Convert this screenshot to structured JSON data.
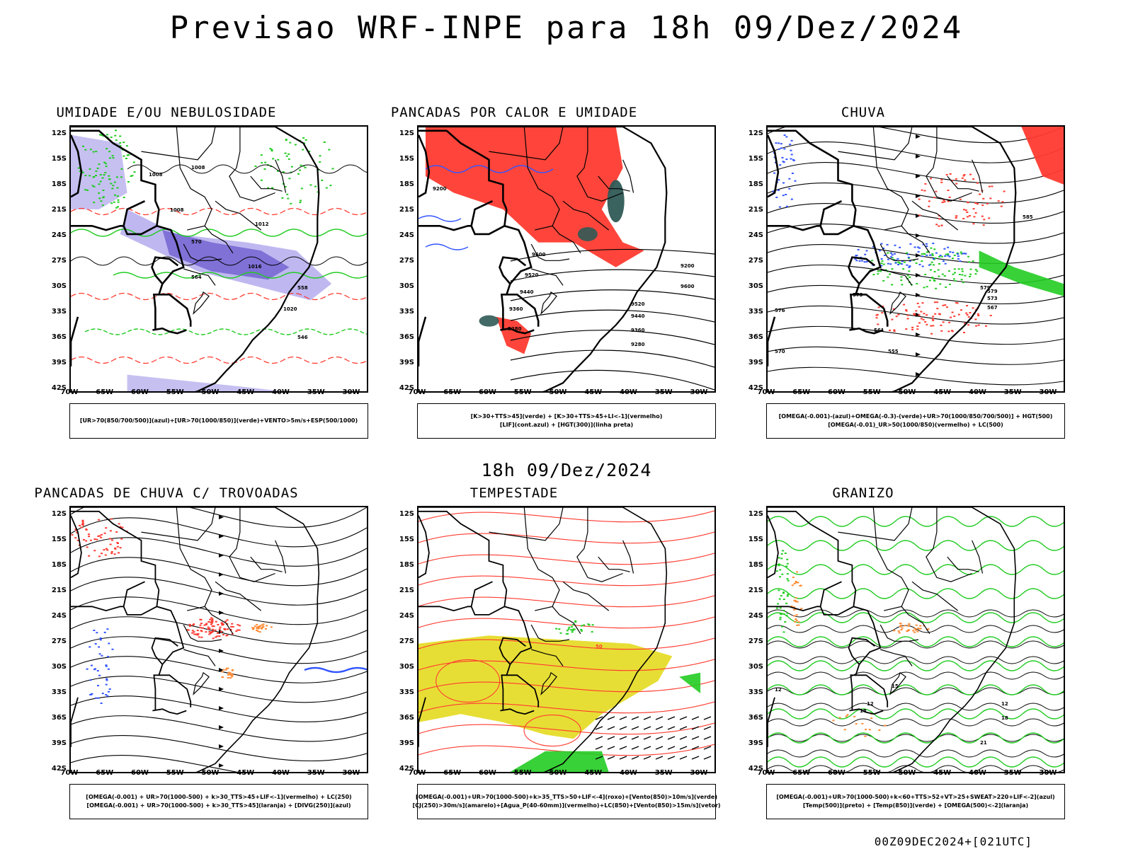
{
  "main_title": "Previsao WRF-INPE  para 18h 09/Dez/2024",
  "mid_date": "18h 09/Dez/2024",
  "footer_stamp": "00Z09DEC2024+[021UTC]",
  "lat_labels": [
    "12S",
    "15S",
    "18S",
    "21S",
    "24S",
    "27S",
    "30S",
    "33S",
    "36S",
    "39S",
    "42S"
  ],
  "lon_labels": [
    "70W",
    "65W",
    "60W",
    "55W",
    "50W",
    "45W",
    "40W",
    "35W",
    "30W"
  ],
  "colors": {
    "red": "#ff3b30",
    "green": "#22cc22",
    "blue": "#3355ff",
    "purple": "#6a5acd",
    "lavender": "#b8b0ee",
    "yellow": "#e6dc2a",
    "darkteal": "#2f5a55",
    "orange": "#ff8a33"
  },
  "panels": [
    {
      "title": "UMIDADE E/OU NEBULOSIDADE",
      "legend": [
        "[UR>70(850/700/500)](azul)+[UR>70(1000/850)](verde)+VENTO>5m/s+ESP(500/1000)"
      ],
      "contour_labels": [
        "1008",
        "1008",
        "1008",
        "1012",
        "1016",
        "1020",
        "570",
        "564",
        "558",
        "546"
      ]
    },
    {
      "title": "PANCADAS POR CALOR E UMIDADE",
      "legend": [
        "[K>30+TTS>45](verde) + [K>30+TTS>45+LI<-1](vermelho)",
        "[LIF](cont.azul) + [HGT(300)](linha preta)"
      ],
      "contour_labels": [
        "9600",
        "9520",
        "9440",
        "9360",
        "9280",
        "9200",
        "9600",
        "9520",
        "9440",
        "9360",
        "9280",
        "9200"
      ]
    },
    {
      "title": "CHUVA",
      "legend": [
        "[OMEGA(-0.001)-(azul)+OMEGA(-0.3)-(verde)+UR>70(1000/850/700/500)] + HGT(500)",
        "[OMEGA(-0.01)_UR>50(1000/850)(vermelho) + LC(500)"
      ],
      "contour_labels": [
        "585",
        "579",
        "573",
        "567",
        "561",
        "555",
        "579",
        "576",
        "570",
        "573"
      ]
    },
    {
      "title": "PANCADAS DE CHUVA C/ TROVOADAS",
      "legend": [
        "[OMEGA(-0.001) + UR>70(1000-500) + k>30_TTS>45+LIF<-1](vermelho) + LC(250)",
        "[OMEGA(-0.001) + UR>70(1000-500) + k>30_TTS>45](laranja) + [DIVG(250)](azul)"
      ],
      "contour_labels": []
    },
    {
      "title": "TEMPESTADE",
      "legend": [
        "[OMEGA(-0.001)+UR>70(1000-500)+k>35_TTS>50+LIF<-4](roxo)+[Vento(850)>10m/s](verde)",
        "[CJ(250)>30m/s](amarelo)+[Agua_P(40-60mm)](vermelho)+LC(850)+[Vento(850)>15m/s](vetor)"
      ],
      "contour_labels": [
        "50"
      ]
    },
    {
      "title": "GRANIZO",
      "legend": [
        "[OMEGA(-0.001)+UR>70(1000-500)+k<60+TTS>52+VT>25+SWEAT>220+LIF<-2](azul)",
        "[Temp(500)](preto) + [Temp(850)](verde) + [OMEGA(500)<-2](laranja)"
      ],
      "contour_labels": [
        "12",
        "12",
        "15",
        "18",
        "18",
        "21",
        "12"
      ]
    }
  ]
}
